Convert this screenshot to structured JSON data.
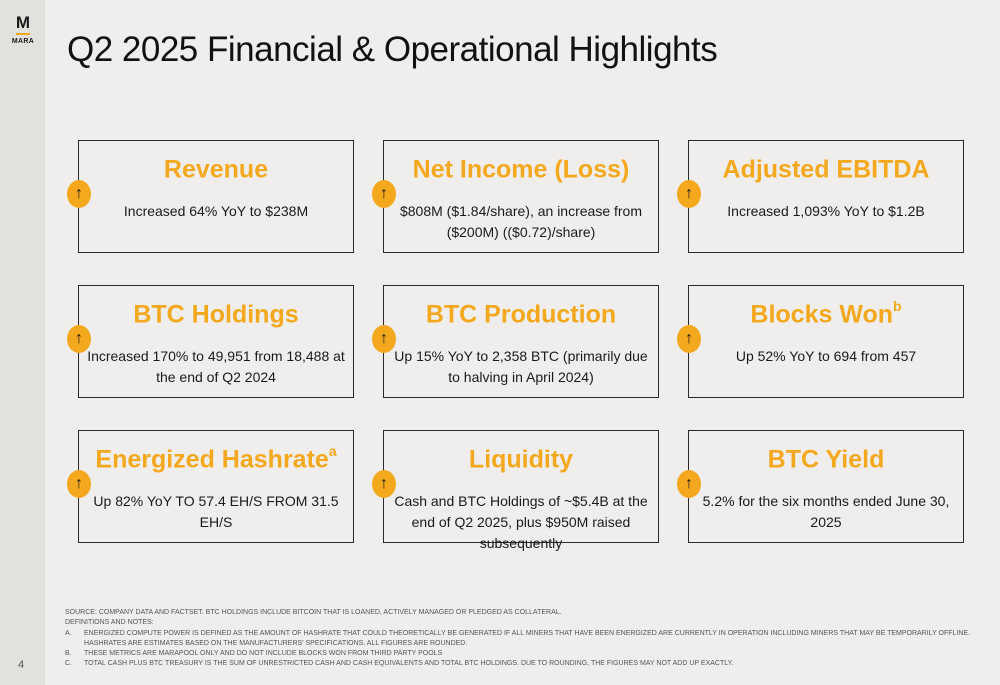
{
  "logo": {
    "mark": "M",
    "word": "MARA"
  },
  "page_number": "4",
  "title": "Q2 2025 Financial & Operational Highlights",
  "cards": [
    {
      "title": "Revenue",
      "sup": "",
      "desc": "Increased 64% YoY to $238M"
    },
    {
      "title": "Net Income (Loss)",
      "sup": "",
      "desc": "$808M ($1.84/share), an increase from ($200M) (($0.72)/share)"
    },
    {
      "title": "Adjusted EBITDA",
      "sup": "",
      "desc": "Increased 1,093% YoY to $1.2B"
    },
    {
      "title": "BTC Holdings",
      "sup": "",
      "desc": "Increased 170% to 49,951 from 18,488 at the end of Q2 2024"
    },
    {
      "title": "BTC Production",
      "sup": "",
      "desc": "Up 15% YoY to 2,358 BTC (primarily due to halving in April 2024)"
    },
    {
      "title": "Blocks Won",
      "sup": "b",
      "desc": "Up 52% YoY to 694 from 457"
    },
    {
      "title": "Energized Hashrate",
      "sup": "a",
      "desc": "Up 82% YoY TO 57.4 EH/S FROM 31.5 EH/S"
    },
    {
      "title": "Liquidity",
      "sup": "",
      "desc": "Cash and BTC Holdings of ~$5.4B at the end of Q2 2025, plus $950M raised subsequently"
    },
    {
      "title": "BTC Yield",
      "sup": "",
      "desc": "5.2% for the six months ended June 30, 2025"
    }
  ],
  "arrow_glyph": "↑",
  "footnotes": {
    "source": "Source: Company data and FactSet. BTC holdings include bitcoin that is loaned, actively managed or pledged as collateral.",
    "heading": "Definitions and notes:",
    "a_letter": "A.",
    "a1": "Energized compute power is defined as the amount of hashrate that could theoretically be generated if all miners that have been energized are currently in operation including miners that may be temporarily offline.",
    "a2": "Hashrates are estimates based on the manufacturers' specifications. All figures are rounded.",
    "b_letter": "B.",
    "b": "These metrics are MARAPool only and do not include blocks won from third party pools",
    "c_letter": "C.",
    "c": "Total cash plus BTC treasury is the sum of unrestricted cash and cash equivalents and total BTC holdings.  Due to rounding, the figures may not add up exactly."
  },
  "colors": {
    "accent": "#f4a81d",
    "background": "#efeeec",
    "sidebar": "#e2e1de"
  }
}
